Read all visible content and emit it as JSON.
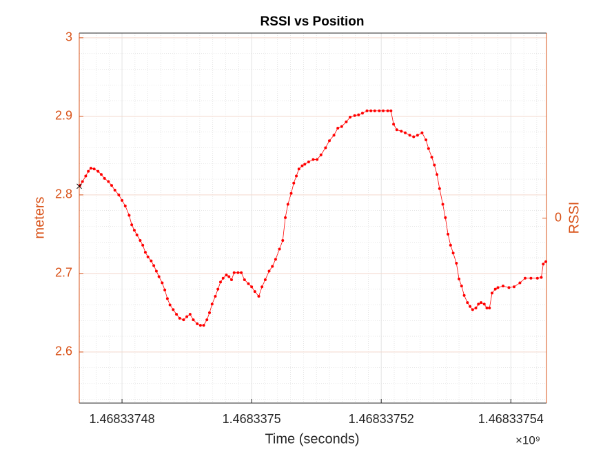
{
  "chart_data": {
    "type": "line",
    "title": "RSSI vs Position",
    "x_label": "Time (seconds)",
    "x_exponent_label": "×10⁹",
    "y_label": "meters",
    "y2_label": "RSSI",
    "xlim": [
      1468337473.4,
      1468337545.5
    ],
    "xticks": [
      {
        "value": 1468337480,
        "label": "1.46833748"
      },
      {
        "value": 1468337500,
        "label": "1.4683375"
      },
      {
        "value": 1468337520,
        "label": "1.46833752"
      },
      {
        "value": 1468337540,
        "label": "1.46833754"
      }
    ],
    "ylim": [
      2.535,
      3.006
    ],
    "yticks": [
      2.6,
      2.7,
      2.8,
      2.9,
      3
    ],
    "y2lim": [
      -1,
      1
    ],
    "y2ticks": [
      0
    ],
    "grid": true,
    "minor_grid": true,
    "axis_color": "#d95319",
    "series": [
      {
        "color": "#ff0000",
        "marker": "dot",
        "x": [
          1468337473.5,
          1468337473.9,
          1468337474.4,
          1468337474.8,
          1468337475.2,
          1468337475.7,
          1468337476.3,
          1468337476.8,
          1468337477.3,
          1468337477.9,
          1468337478.4,
          1468337478.9,
          1468337479.5,
          1468337480.0,
          1468337480.5,
          1468337481.1,
          1468337481.5,
          1468337481.9,
          1468337482.3,
          1468337482.8,
          1468337483.2,
          1468337483.6,
          1468337484.0,
          1468337484.5,
          1468337484.9,
          1468337485.3,
          1468337485.7,
          1468337486.2,
          1468337486.6,
          1468337487.0,
          1468337487.4,
          1468337487.9,
          1468337488.4,
          1468337488.9,
          1468337489.5,
          1468337490.0,
          1468337490.5,
          1468337491.0,
          1468337491.6,
          1468337492.1,
          1468337492.6,
          1468337493.1,
          1468337493.5,
          1468337493.9,
          1468337494.4,
          1468337494.8,
          1468337495.2,
          1468337495.6,
          1468337496.1,
          1468337496.5,
          1468337496.9,
          1468337497.3,
          1468337497.9,
          1468337498.4,
          1468337498.9,
          1468337499.5,
          1468337500.0,
          1468337500.5,
          1468337501.1,
          1468337501.6,
          1468337502.1,
          1468337502.7,
          1468337503.2,
          1468337503.7,
          1468337504.3,
          1468337504.8,
          1468337505.2,
          1468337505.6,
          1468337506.1,
          1468337506.5,
          1468337506.9,
          1468337507.3,
          1468337507.8,
          1468337508.2,
          1468337508.8,
          1468337509.5,
          1468337510.1,
          1468337510.7,
          1468337511.4,
          1468337512.0,
          1468337512.7,
          1468337513.3,
          1468337513.9,
          1468337514.6,
          1468337515.2,
          1468337515.9,
          1468337516.5,
          1468337517.1,
          1468337517.8,
          1468337518.4,
          1468337519.0,
          1468337519.7,
          1468337520.3,
          1468337521.0,
          1468337521.5,
          1468337521.9,
          1468337522.4,
          1468337523.1,
          1468337523.7,
          1468337524.4,
          1468337525.0,
          1468337525.6,
          1468337526.3,
          1468337526.9,
          1468337527.3,
          1468337527.8,
          1468337528.2,
          1468337528.6,
          1468337529.0,
          1468337529.5,
          1468337529.9,
          1468337530.3,
          1468337530.7,
          1468337531.1,
          1468337531.6,
          1468337532.0,
          1468337532.4,
          1468337532.8,
          1468337533.3,
          1468337533.7,
          1468337534.1,
          1468337534.6,
          1468337535.0,
          1468337535.4,
          1468337535.9,
          1468337536.3,
          1468337536.7,
          1468337537.1,
          1468337537.6,
          1468337538.0,
          1468337538.8,
          1468337539.7,
          1468337540.5,
          1468337541.4,
          1468337542.2,
          1468337543.1,
          1468337544.1,
          1468337544.7,
          1468337545.0,
          1468337545.4
        ],
        "values": [
          2.812,
          2.817,
          2.824,
          2.83,
          2.834,
          2.833,
          2.83,
          2.826,
          2.821,
          2.817,
          2.812,
          2.806,
          2.8,
          2.793,
          2.786,
          2.774,
          2.762,
          2.755,
          2.749,
          2.742,
          2.736,
          2.727,
          2.721,
          2.716,
          2.71,
          2.703,
          2.696,
          2.688,
          2.679,
          2.668,
          2.66,
          2.654,
          2.648,
          2.643,
          2.641,
          2.645,
          2.648,
          2.641,
          2.636,
          2.634,
          2.634,
          2.641,
          2.65,
          2.661,
          2.671,
          2.68,
          2.689,
          2.694,
          2.698,
          2.696,
          2.692,
          2.701,
          2.701,
          2.701,
          2.692,
          2.687,
          2.683,
          2.677,
          2.671,
          2.683,
          2.692,
          2.703,
          2.709,
          2.718,
          2.731,
          2.742,
          2.771,
          2.788,
          2.802,
          2.815,
          2.824,
          2.833,
          2.837,
          2.839,
          2.842,
          2.845,
          2.845,
          2.851,
          2.86,
          2.869,
          2.876,
          2.885,
          2.887,
          2.893,
          2.899,
          2.901,
          2.902,
          2.904,
          2.907,
          2.907,
          2.907,
          2.907,
          2.907,
          2.907,
          2.907,
          2.89,
          2.883,
          2.881,
          2.879,
          2.876,
          2.874,
          2.876,
          2.879,
          2.87,
          2.859,
          2.848,
          2.838,
          2.826,
          2.808,
          2.788,
          2.771,
          2.75,
          2.736,
          2.726,
          2.713,
          2.693,
          2.684,
          2.672,
          2.663,
          2.658,
          2.654,
          2.656,
          2.661,
          2.663,
          2.661,
          2.656,
          2.656,
          2.675,
          2.68,
          2.682,
          2.684,
          2.682,
          2.683,
          2.688,
          2.694,
          2.694,
          2.694,
          2.695,
          2.712,
          2.715
        ]
      },
      {
        "color": "#000000",
        "marker": "x",
        "x": [
          1468337473.4
        ],
        "values": [
          2.811
        ]
      }
    ]
  }
}
